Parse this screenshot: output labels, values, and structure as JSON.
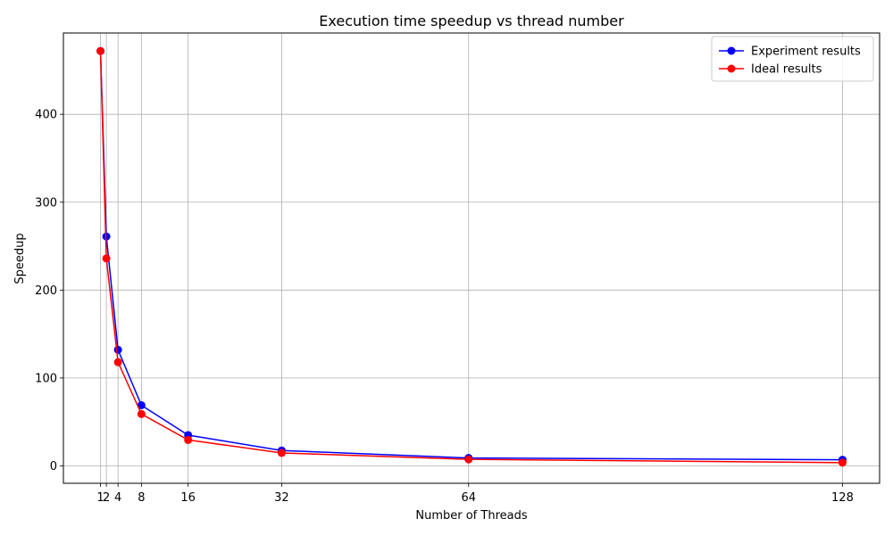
{
  "chart_data": {
    "type": "line",
    "title": "Execution time speedup vs thread number",
    "xlabel": "Number of Threads",
    "ylabel": "Speedup",
    "x": [
      1,
      2,
      4,
      8,
      16,
      32,
      64,
      128
    ],
    "xticks": [
      "1",
      "2",
      "4",
      "8",
      "16",
      "32",
      "64",
      "128"
    ],
    "yticks": [
      "0",
      "100",
      "200",
      "300",
      "400"
    ],
    "xlim": [
      -5.35,
      134.35
    ],
    "ylim": [
      -19.8,
      492.5
    ],
    "grid": true,
    "legend_position": "top-right",
    "series": [
      {
        "name": "Experiment results",
        "color": "#0000ff",
        "marker": "circle",
        "values": [
          472,
          261,
          132,
          69,
          35,
          17.5,
          9,
          7
        ]
      },
      {
        "name": "Ideal results",
        "color": "#ff0000",
        "marker": "circle",
        "values": [
          472,
          236,
          118,
          59,
          29.5,
          14.75,
          7.4,
          3.7
        ]
      }
    ]
  }
}
